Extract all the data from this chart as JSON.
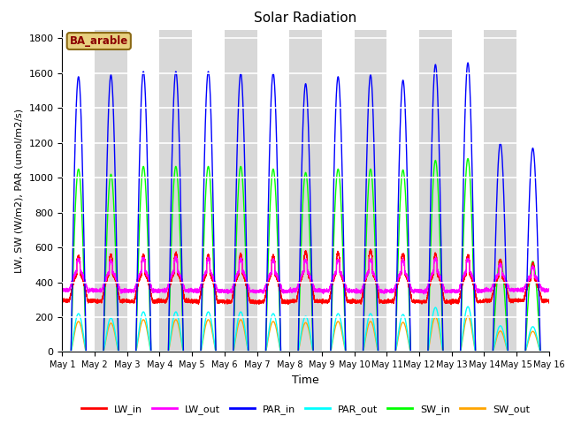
{
  "title": "Solar Radiation",
  "xlabel": "Time",
  "ylabel": "LW, SW (W/m2), PAR (umol/m2/s)",
  "annotation": "BA_arable",
  "annotation_color": "#8B0000",
  "annotation_bg": "#e8d080",
  "xlim_days": [
    0,
    15
  ],
  "ylim": [
    0,
    1850
  ],
  "yticks": [
    0,
    200,
    400,
    600,
    800,
    1000,
    1200,
    1400,
    1600,
    1800
  ],
  "legend_order": [
    "LW_in",
    "LW_out",
    "PAR_in",
    "PAR_out",
    "SW_in",
    "SW_out"
  ],
  "bg_stripe_color": "#d8d8d8",
  "n_days": 15,
  "points_per_day": 480,
  "par_in_peaks": [
    1580,
    1590,
    1610,
    1610,
    1610,
    1600,
    1600,
    1540,
    1580,
    1590,
    1560,
    1650,
    1660,
    1200,
    1170
  ],
  "sw_in_peaks": [
    1050,
    1020,
    1065,
    1065,
    1065,
    1065,
    1050,
    1030,
    1050,
    1050,
    1045,
    1100,
    1110,
    530,
    520
  ],
  "par_out_peaks": [
    220,
    195,
    230,
    230,
    230,
    230,
    220,
    205,
    220,
    220,
    215,
    255,
    260,
    150,
    145
  ],
  "sw_out_peaks": [
    175,
    165,
    185,
    185,
    185,
    185,
    175,
    168,
    175,
    175,
    170,
    200,
    205,
    120,
    118
  ],
  "lw_in_night": [
    295,
    292,
    290,
    292,
    290,
    288,
    288,
    292,
    290,
    288,
    290,
    288,
    290,
    295,
    295
  ],
  "lw_in_day_add": [
    160,
    165,
    165,
    170,
    165,
    170,
    165,
    175,
    175,
    185,
    170,
    170,
    165,
    145,
    130
  ],
  "lw_out_night": [
    355,
    352,
    350,
    352,
    350,
    348,
    348,
    352,
    350,
    348,
    350,
    348,
    350,
    355,
    355
  ],
  "lw_out_day_add": [
    115,
    110,
    120,
    120,
    118,
    120,
    115,
    115,
    115,
    118,
    112,
    120,
    118,
    95,
    85
  ]
}
